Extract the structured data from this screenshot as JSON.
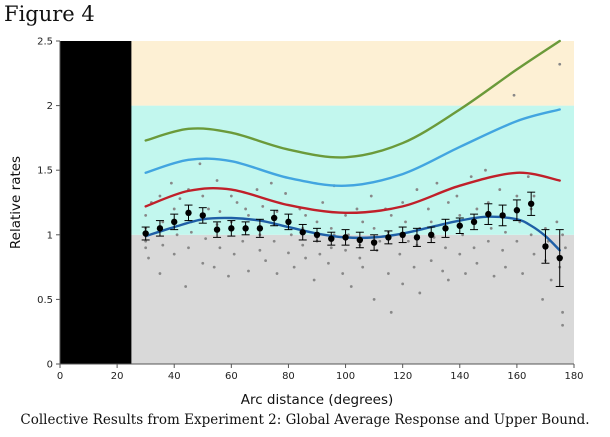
{
  "figure_label": "Figure 4",
  "caption": "Collective Results from Experiment 2: Global Average Response and Upper Bound.",
  "chart_data": {
    "type": "line",
    "xlabel": "Arc distance (degrees)",
    "ylabel": "Relative rates",
    "xlim": [
      0,
      180
    ],
    "ylim": [
      0,
      2.5
    ],
    "xticks": [
      0,
      20,
      40,
      60,
      80,
      100,
      120,
      140,
      160,
      180
    ],
    "yticks": [
      0,
      0.5,
      1,
      1.5,
      2,
      2.5
    ],
    "grid": false,
    "legend": "none",
    "blocked_region_x": [
      0,
      25
    ],
    "bands": [
      {
        "y": [
          0,
          1
        ],
        "color": "#d9d9d9"
      },
      {
        "y": [
          1,
          2
        ],
        "color": "#c2f7ee"
      },
      {
        "y": [
          2,
          2.5
        ],
        "color": "#fdf0d4"
      }
    ],
    "curves": [
      {
        "color": "#6b9a3a",
        "x": [
          30,
          45,
          60,
          80,
          100,
          120,
          140,
          160,
          175
        ],
        "y": [
          1.73,
          1.82,
          1.79,
          1.66,
          1.6,
          1.71,
          1.97,
          2.28,
          2.5
        ]
      },
      {
        "color": "#42a5e0",
        "x": [
          30,
          45,
          60,
          80,
          100,
          120,
          140,
          160,
          175
        ],
        "y": [
          1.48,
          1.58,
          1.57,
          1.44,
          1.38,
          1.47,
          1.68,
          1.88,
          1.97
        ]
      },
      {
        "color": "#c0202a",
        "x": [
          30,
          45,
          60,
          80,
          100,
          120,
          140,
          160,
          175
        ],
        "y": [
          1.22,
          1.34,
          1.35,
          1.23,
          1.17,
          1.22,
          1.38,
          1.48,
          1.42
        ]
      },
      {
        "color": "#1f5fa6",
        "x": [
          30,
          40,
          50,
          60,
          70,
          80,
          90,
          100,
          110,
          120,
          130,
          140,
          150,
          160,
          165,
          170,
          175
        ],
        "y": [
          0.99,
          1.06,
          1.12,
          1.13,
          1.11,
          1.06,
          1.01,
          0.98,
          0.98,
          1.01,
          1.06,
          1.11,
          1.14,
          1.12,
          1.07,
          0.99,
          0.88
        ]
      }
    ],
    "means": {
      "color": "#000000",
      "x": [
        30,
        35,
        40,
        45,
        50,
        55,
        60,
        65,
        70,
        75,
        80,
        85,
        90,
        95,
        100,
        105,
        110,
        115,
        120,
        125,
        130,
        135,
        140,
        145,
        150,
        155,
        160,
        165,
        170,
        175
      ],
      "y": [
        1.01,
        1.05,
        1.1,
        1.17,
        1.15,
        1.04,
        1.05,
        1.05,
        1.05,
        1.13,
        1.1,
        1.02,
        1.0,
        0.97,
        0.98,
        0.96,
        0.94,
        0.98,
        1.0,
        0.98,
        1.0,
        1.05,
        1.07,
        1.1,
        1.16,
        1.15,
        1.19,
        1.24,
        0.91,
        0.82
      ],
      "err": [
        0.05,
        0.06,
        0.06,
        0.06,
        0.06,
        0.06,
        0.06,
        0.05,
        0.07,
        0.06,
        0.06,
        0.06,
        0.05,
        0.05,
        0.06,
        0.06,
        0.06,
        0.05,
        0.06,
        0.07,
        0.06,
        0.07,
        0.06,
        0.06,
        0.08,
        0.08,
        0.08,
        0.09,
        0.13,
        0.22
      ]
    },
    "scatter": {
      "color": "#888888",
      "x": [
        30,
        30,
        30,
        30,
        31,
        32,
        35,
        35,
        36,
        36,
        39,
        40,
        40,
        41,
        42,
        44,
        45,
        45,
        46,
        46,
        49,
        50,
        50,
        51,
        52,
        54,
        55,
        55,
        56,
        56,
        59,
        60,
        60,
        61,
        62,
        64,
        65,
        65,
        66,
        66,
        69,
        70,
        70,
        71,
        72,
        74,
        75,
        75,
        76,
        76,
        79,
        80,
        80,
        81,
        82,
        84,
        85,
        85,
        86,
        86,
        89,
        90,
        90,
        91,
        92,
        94,
        95,
        95,
        96,
        96,
        99,
        100,
        100,
        101,
        102,
        104,
        105,
        105,
        106,
        106,
        109,
        110,
        110,
        111,
        112,
        114,
        115,
        115,
        116,
        116,
        119,
        120,
        120,
        121,
        122,
        124,
        125,
        125,
        126,
        126,
        129,
        130,
        130,
        131,
        132,
        134,
        135,
        135,
        136,
        136,
        139,
        140,
        140,
        141,
        142,
        144,
        145,
        145,
        146,
        146,
        149,
        150,
        150,
        151,
        152,
        154,
        155,
        155,
        156,
        156,
        159,
        160,
        160,
        161,
        162,
        164,
        165,
        165,
        166,
        166,
        169,
        170,
        170,
        171,
        172,
        174,
        175,
        175,
        176,
        176,
        176,
        177
      ],
      "y": [
        0.9,
        1.15,
        0.95,
        1.05,
        0.82,
        1.25,
        1.3,
        0.7,
        1.1,
        0.92,
        1.4,
        0.85,
        1.2,
        1.0,
        1.28,
        0.6,
        1.35,
        0.9,
        1.1,
        1.02,
        1.55,
        0.78,
        1.3,
        0.97,
        1.2,
        0.75,
        1.42,
        1.08,
        0.9,
        1.18,
        0.68,
        1.3,
        1.1,
        0.85,
        1.25,
        0.95,
        1.2,
        1.05,
        0.72,
        1.15,
        1.35,
        0.88,
        1.0,
        1.22,
        0.8,
        1.4,
        1.08,
        0.95,
        1.18,
        0.7,
        1.32,
        0.86,
        1.1,
        1.0,
        0.75,
        1.2,
        0.92,
        1.05,
        0.82,
        1.15,
        0.65,
        1.1,
        0.95,
        0.85,
        1.25,
        0.78,
        1.05,
        0.9,
        1.0,
        1.38,
        0.7,
        1.15,
        0.88,
        1.0,
        0.6,
        1.2,
        0.92,
        0.82,
        1.1,
        0.75,
        1.3,
        0.5,
        1.05,
        0.88,
        0.95,
        1.2,
        0.7,
        1.02,
        0.4,
        1.15,
        0.85,
        1.25,
        0.62,
        1.1,
        0.95,
        0.75,
        1.35,
        0.92,
        1.05,
        0.55,
        1.2,
        0.8,
        1.1,
        0.98,
        1.4,
        0.72,
        1.05,
        0.9,
        1.25,
        0.65,
        1.3,
        0.85,
        1.15,
        1.0,
        0.7,
        1.45,
        0.9,
        1.1,
        1.2,
        0.78,
        1.5,
        0.95,
        1.25,
        1.05,
        0.68,
        1.35,
        0.88,
        1.15,
        1.02,
        0.75,
        2.08,
        1.3,
        0.95,
        1.1,
        0.7,
        1.45,
        1.0,
        1.2,
        0.85,
        1.3,
        0.5,
        1.05,
        0.8,
        0.95,
        0.65,
        1.1,
        0.75,
        2.32,
        0.4,
        1.0,
        0.3,
        0.9
      ]
    }
  }
}
